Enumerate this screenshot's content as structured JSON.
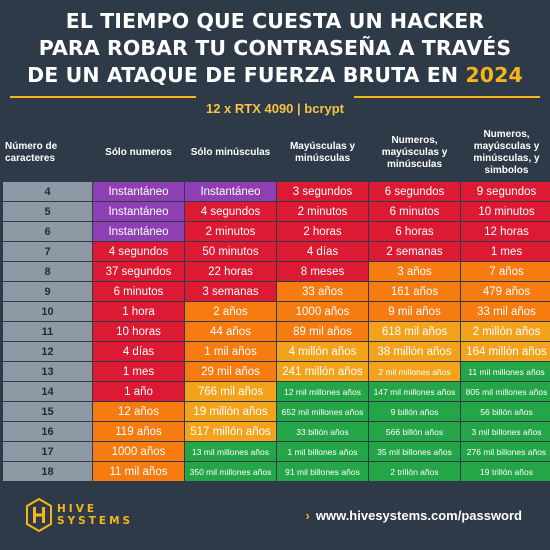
{
  "title": {
    "line1": "EL TIEMPO QUE CUESTA UN HACKER",
    "line2": "PARA ROBAR TU CONTRASEÑA A TRAVÉS",
    "line3_prefix": "DE UN ATAQUE DE FUERZA BRUTA EN",
    "year": "2024"
  },
  "subtitle": "12 x RTX 4090 | bcrypt",
  "table": {
    "headers": [
      "Número de caracteres",
      "Sólo numeros",
      "Sólo minúsculas",
      "Mayúsculas y minúsculas",
      "Numeros, mayúsculas y minúsculas",
      "Numeros, mayúsculas y minúsculas, y simbolos"
    ],
    "rows": [
      {
        "n": "4",
        "cells": [
          {
            "t": "Instantáneo",
            "c": "purple"
          },
          {
            "t": "Instantáneo",
            "c": "purple"
          },
          {
            "t": "3 segundos",
            "c": "red"
          },
          {
            "t": "6 segundos",
            "c": "red"
          },
          {
            "t": "9 segundos",
            "c": "red"
          }
        ]
      },
      {
        "n": "5",
        "cells": [
          {
            "t": "Instantáneo",
            "c": "purple"
          },
          {
            "t": "4 segundos",
            "c": "red"
          },
          {
            "t": "2 minutos",
            "c": "red"
          },
          {
            "t": "6 minutos",
            "c": "red"
          },
          {
            "t": "10 minutos",
            "c": "red"
          }
        ]
      },
      {
        "n": "6",
        "cells": [
          {
            "t": "Instantáneo",
            "c": "purple"
          },
          {
            "t": "2 minutos",
            "c": "red"
          },
          {
            "t": "2 horas",
            "c": "red"
          },
          {
            "t": "6 horas",
            "c": "red"
          },
          {
            "t": "12 horas",
            "c": "red"
          }
        ]
      },
      {
        "n": "7",
        "cells": [
          {
            "t": "4 segundos",
            "c": "red"
          },
          {
            "t": "50 minutos",
            "c": "red"
          },
          {
            "t": "4 días",
            "c": "red"
          },
          {
            "t": "2 semanas",
            "c": "red"
          },
          {
            "t": "1 mes",
            "c": "red"
          }
        ]
      },
      {
        "n": "8",
        "cells": [
          {
            "t": "37 segundos",
            "c": "red"
          },
          {
            "t": "22 horas",
            "c": "red"
          },
          {
            "t": "8 meses",
            "c": "red"
          },
          {
            "t": "3 años",
            "c": "orange"
          },
          {
            "t": "7 años",
            "c": "orange"
          }
        ]
      },
      {
        "n": "9",
        "cells": [
          {
            "t": "6 minutos",
            "c": "red"
          },
          {
            "t": "3 semanas",
            "c": "red"
          },
          {
            "t": "33 años",
            "c": "orange"
          },
          {
            "t": "161 años",
            "c": "orange"
          },
          {
            "t": "479 años",
            "c": "orange"
          }
        ]
      },
      {
        "n": "10",
        "cells": [
          {
            "t": "1 hora",
            "c": "red"
          },
          {
            "t": "2 años",
            "c": "orange"
          },
          {
            "t": "1000 años",
            "c": "orange"
          },
          {
            "t": "9 mil años",
            "c": "orange"
          },
          {
            "t": "33 mil años",
            "c": "orange"
          }
        ]
      },
      {
        "n": "11",
        "cells": [
          {
            "t": "10 horas",
            "c": "red"
          },
          {
            "t": "44 años",
            "c": "orange"
          },
          {
            "t": "89 mil años",
            "c": "orange"
          },
          {
            "t": "618 mil años",
            "c": "amber"
          },
          {
            "t": "2 millón años",
            "c": "amber"
          }
        ]
      },
      {
        "n": "12",
        "cells": [
          {
            "t": "4 días",
            "c": "red"
          },
          {
            "t": "1 mil años",
            "c": "orange"
          },
          {
            "t": "4 millón años",
            "c": "amber"
          },
          {
            "t": "38 millón años",
            "c": "amber"
          },
          {
            "t": "164 millón años",
            "c": "amber"
          }
        ]
      },
      {
        "n": "13",
        "cells": [
          {
            "t": "1 mes",
            "c": "red"
          },
          {
            "t": "29 mil años",
            "c": "orange"
          },
          {
            "t": "241 millón años",
            "c": "amber"
          },
          {
            "t": "2 mil millones años",
            "c": "amber",
            "sm": true
          },
          {
            "t": "11 mil millones años",
            "c": "green",
            "sm": true
          }
        ]
      },
      {
        "n": "14",
        "cells": [
          {
            "t": "1 año",
            "c": "red"
          },
          {
            "t": "766 mil años",
            "c": "amber"
          },
          {
            "t": "12 mil millones años",
            "c": "green",
            "sm": true
          },
          {
            "t": "147 mil millones años",
            "c": "green",
            "sm": true
          },
          {
            "t": "805 mil millones años",
            "c": "green",
            "sm": true
          }
        ]
      },
      {
        "n": "15",
        "cells": [
          {
            "t": "12 años",
            "c": "orange"
          },
          {
            "t": "19 millón años",
            "c": "amber"
          },
          {
            "t": "652 mil millones años",
            "c": "green",
            "sm": true
          },
          {
            "t": "9 billón años",
            "c": "green",
            "sm": true
          },
          {
            "t": "56 billón años",
            "c": "green",
            "sm": true
          }
        ]
      },
      {
        "n": "16",
        "cells": [
          {
            "t": "119 años",
            "c": "orange"
          },
          {
            "t": "517 millón años",
            "c": "amber"
          },
          {
            "t": "33 billón años",
            "c": "green",
            "sm": true
          },
          {
            "t": "566 billón años",
            "c": "green",
            "sm": true
          },
          {
            "t": "3 mil billones años",
            "c": "green",
            "sm": true
          }
        ]
      },
      {
        "n": "17",
        "cells": [
          {
            "t": "1000 años",
            "c": "orange"
          },
          {
            "t": "13 mil millones años",
            "c": "green",
            "sm": true
          },
          {
            "t": "1 mil billones años",
            "c": "green",
            "sm": true
          },
          {
            "t": "35 mil billones años",
            "c": "green",
            "sm": true
          },
          {
            "t": "276 mil billones años",
            "c": "green",
            "sm": true
          }
        ]
      },
      {
        "n": "18",
        "cells": [
          {
            "t": "11 mil años",
            "c": "orange"
          },
          {
            "t": "350 mil millones años",
            "c": "green",
            "sm": true
          },
          {
            "t": "91 mil billones años",
            "c": "green",
            "sm": true
          },
          {
            "t": "2 trillón años",
            "c": "green",
            "sm": true
          },
          {
            "t": "19 trillón años",
            "c": "green",
            "sm": true
          }
        ]
      }
    ]
  },
  "footer": {
    "logo_line1": "HIVE",
    "logo_line2": "SYSTEMS",
    "url": "www.hivesystems.com/password",
    "chevron_icon": "chevron-right-icon"
  },
  "colors": {
    "background": "#2e3a47",
    "accent": "#f6b51b",
    "purple": "#8d3fb3",
    "red": "#dc1a33",
    "orange": "#f67b10",
    "amber": "#f3a31b",
    "green": "#23a548",
    "number_col": "#8f99a5"
  }
}
